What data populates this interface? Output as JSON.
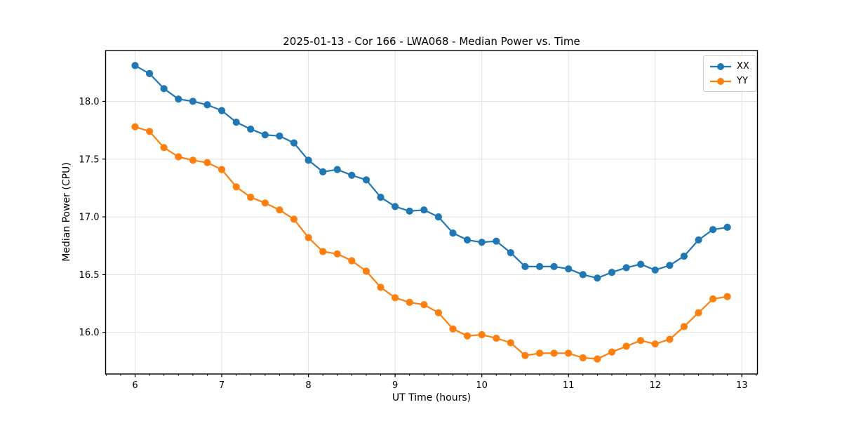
{
  "chart_data": {
    "type": "line",
    "title": "2025-01-13 - Cor 166 - LWA068 - Median Power vs. Time",
    "xlabel": "UT Time (hours)",
    "ylabel": "Median Power (CPU)",
    "xlim": [
      5.66,
      13.18
    ],
    "ylim": [
      15.64,
      18.44
    ],
    "xticks": [
      6,
      7,
      8,
      9,
      10,
      11,
      12,
      13
    ],
    "xtick_labels": [
      "6",
      "7",
      "8",
      "9",
      "10",
      "11",
      "12",
      "13"
    ],
    "yticks": [
      16.0,
      16.5,
      17.0,
      17.5,
      18.0
    ],
    "ytick_labels": [
      "16.0",
      "16.5",
      "17.0",
      "17.5",
      "18.0"
    ],
    "x_minor_step": 0.166667,
    "grid": true,
    "grid_color": "#e0e0e0",
    "background": "#ffffff",
    "legend_position": "upper right",
    "x": [
      6.0,
      6.167,
      6.333,
      6.5,
      6.667,
      6.833,
      7.0,
      7.167,
      7.333,
      7.5,
      7.667,
      7.833,
      8.0,
      8.167,
      8.333,
      8.5,
      8.667,
      8.833,
      9.0,
      9.167,
      9.333,
      9.5,
      9.667,
      9.833,
      10.0,
      10.167,
      10.333,
      10.5,
      10.667,
      10.833,
      11.0,
      11.167,
      11.333,
      11.5,
      11.667,
      11.833,
      12.0,
      12.167,
      12.333,
      12.5,
      12.667,
      12.833
    ],
    "series": [
      {
        "name": "XX",
        "color": "#1f77b4",
        "values": [
          18.31,
          18.24,
          18.11,
          18.02,
          18.0,
          17.97,
          17.92,
          17.82,
          17.76,
          17.71,
          17.7,
          17.64,
          17.49,
          17.39,
          17.41,
          17.36,
          17.32,
          17.17,
          17.09,
          17.05,
          17.06,
          17.0,
          16.86,
          16.8,
          16.78,
          16.79,
          16.69,
          16.57,
          16.57,
          16.57,
          16.55,
          16.5,
          16.47,
          16.52,
          16.56,
          16.59,
          16.54,
          16.58,
          16.66,
          16.8,
          16.89,
          16.91
        ]
      },
      {
        "name": "YY",
        "color": "#ff7f0e",
        "values": [
          17.78,
          17.74,
          17.6,
          17.52,
          17.49,
          17.47,
          17.41,
          17.26,
          17.17,
          17.12,
          17.06,
          16.98,
          16.82,
          16.7,
          16.68,
          16.62,
          16.53,
          16.39,
          16.3,
          16.26,
          16.24,
          16.17,
          16.03,
          15.97,
          15.98,
          15.95,
          15.91,
          15.8,
          15.82,
          15.82,
          15.82,
          15.78,
          15.77,
          15.83,
          15.88,
          15.93,
          15.9,
          15.94,
          16.05,
          16.17,
          16.29,
          16.31
        ]
      }
    ]
  }
}
